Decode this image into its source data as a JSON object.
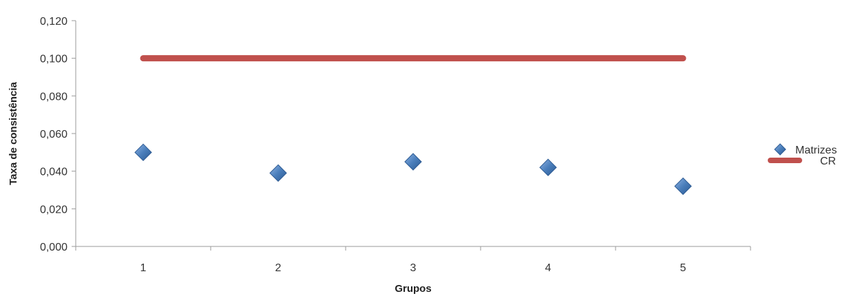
{
  "chart_data": {
    "type": "scatter",
    "title": "",
    "xlabel": "Grupos",
    "ylabel": "Taxa de consistência",
    "x": [
      1,
      2,
      3,
      4,
      5
    ],
    "x_tick_labels": [
      "1",
      "2",
      "3",
      "4",
      "5"
    ],
    "xlim": [
      0.5,
      5.5
    ],
    "ylim": [
      0,
      0.12
    ],
    "y_ticks": [
      0,
      0.02,
      0.04,
      0.06,
      0.08,
      0.1,
      0.12
    ],
    "y_tick_labels": [
      "0,000",
      "0,020",
      "0,040",
      "0,060",
      "0,080",
      "0,100",
      "0,120"
    ],
    "grid": false,
    "legend_position": "right",
    "series": [
      {
        "name": "Matrizes",
        "kind": "scatter",
        "marker": "diamond",
        "color": "#4a7ebb",
        "values": [
          0.05,
          0.039,
          0.045,
          0.042,
          0.032
        ]
      },
      {
        "name": "CR",
        "kind": "line",
        "color": "#c0504d",
        "values": [
          0.1,
          0.1,
          0.1,
          0.1,
          0.1
        ]
      }
    ]
  }
}
